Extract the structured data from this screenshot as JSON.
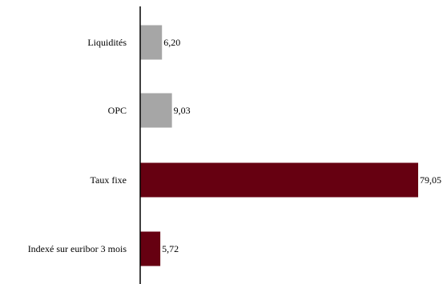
{
  "chart_data": {
    "type": "bar",
    "orientation": "horizontal",
    "categories": [
      "Liquidités",
      "OPC",
      "Taux fixe",
      "Indexé sur euribor 3 mois"
    ],
    "values": [
      6.2,
      9.03,
      79.05,
      5.72
    ],
    "value_labels": [
      "6,20",
      "9,03",
      "79,05",
      "5,72"
    ],
    "bar_colors": [
      "#a6a6a6",
      "#a6a6a6",
      "#660011",
      "#660011"
    ],
    "title": "",
    "xlabel": "",
    "ylabel": "",
    "xlim": [
      0,
      79.05
    ],
    "grid": false,
    "legend": "none"
  }
}
